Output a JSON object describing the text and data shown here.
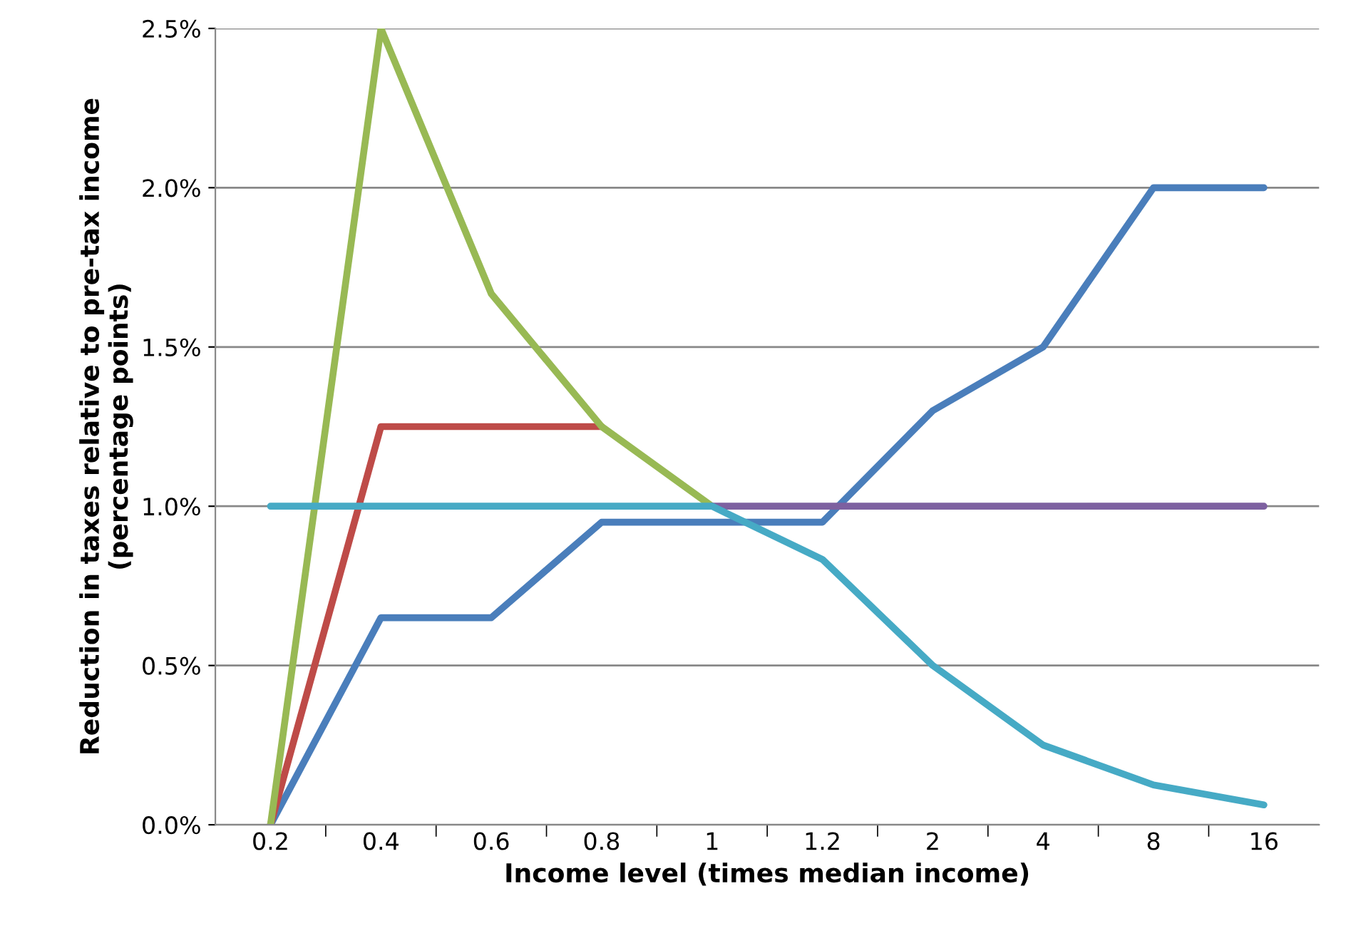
{
  "chart_data": {
    "type": "line",
    "xlabel": "Income level (times median income)",
    "ylabel": "Reduction in taxes relative to pre-tax income\n(percentage points)",
    "categories": [
      "0.2",
      "0.4",
      "0.6",
      "0.8",
      "1",
      "1.2",
      "2",
      "4",
      "8",
      "16"
    ],
    "series": [
      {
        "color": "#4a7ebb",
        "values": [
          0,
          0.65,
          0.65,
          0.95,
          0.95,
          0.95,
          1.3,
          1.5,
          2.0,
          2.0
        ]
      },
      {
        "color": "#be4b48",
        "values": [
          0,
          1.25,
          1.25,
          1.25,
          null,
          null,
          null,
          null,
          null,
          null
        ]
      },
      {
        "color": "#98b954",
        "values": [
          0,
          2.5,
          1.667,
          1.25,
          1.0,
          null,
          null,
          null,
          null,
          null
        ]
      },
      {
        "color": "#7d60a0",
        "values": [
          null,
          null,
          null,
          null,
          1.0,
          1.0,
          1.0,
          1.0,
          1.0,
          1.0
        ]
      },
      {
        "color": "#46aac5",
        "values": [
          1.0,
          1.0,
          1.0,
          1.0,
          1.0,
          0.833,
          0.5,
          0.25,
          0.125,
          0.0625
        ]
      }
    ],
    "ylim": [
      0,
      2.5
    ],
    "yticks": [
      {
        "value": 0,
        "label": "0.0%"
      },
      {
        "value": 0.5,
        "label": "0.5%"
      },
      {
        "value": 1.0,
        "label": "1.0%"
      },
      {
        "value": 1.5,
        "label": "1.5%"
      },
      {
        "value": 2.0,
        "label": "2.0%"
      },
      {
        "value": 2.5,
        "label": "2.5%"
      }
    ],
    "grid": "y",
    "legend": false,
    "marker": "none",
    "line_style": "solid"
  }
}
